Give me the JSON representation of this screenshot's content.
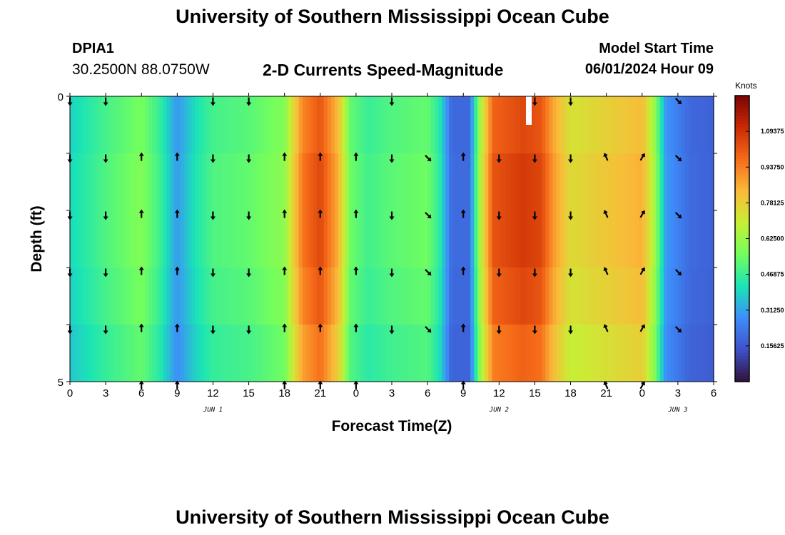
{
  "header": {
    "title": "University of Southern Mississippi Ocean Cube",
    "station_id": "DPIA1",
    "coords": "30.2500N  88.0750W",
    "subtitle": "2-D Currents Speed-Magnitude",
    "start_label": "Model Start Time",
    "start_value": "06/01/2024 Hour 09"
  },
  "footer": {
    "title": "University of Southern Mississippi Ocean Cube"
  },
  "chart_data": {
    "type": "heatmap",
    "title": "2-D Currents Speed-Magnitude",
    "xlabel": "Forecast Time(Z)",
    "ylabel": "Depth (ft)",
    "x_range_hours": [
      0,
      54
    ],
    "ylim": [
      0,
      5
    ],
    "x_ticks": [
      "0",
      "3",
      "6",
      "9",
      "12",
      "15",
      "18",
      "21",
      "0",
      "3",
      "6",
      "9",
      "12",
      "15",
      "18",
      "21",
      "0",
      "3",
      "6"
    ],
    "y_tick_labels": [
      "0",
      "5"
    ],
    "date_labels": [
      {
        "label": "JUN 1",
        "hour": 12
      },
      {
        "label": "JUN 2",
        "hour": 36
      },
      {
        "label": "JUN 3",
        "hour": 51
      }
    ],
    "depth_layers": 5,
    "speed_profile_knots": [
      {
        "hour": 0,
        "speed": 0.4
      },
      {
        "hour": 3,
        "speed": 0.5
      },
      {
        "hour": 6,
        "speed": 0.58
      },
      {
        "hour": 7.5,
        "speed": 0.48
      },
      {
        "hour": 9,
        "speed": 0.3
      },
      {
        "hour": 10.5,
        "speed": 0.42
      },
      {
        "hour": 12,
        "speed": 0.5
      },
      {
        "hour": 15,
        "speed": 0.53
      },
      {
        "hour": 18,
        "speed": 0.6
      },
      {
        "hour": 19.5,
        "speed": 0.95
      },
      {
        "hour": 21,
        "speed": 1.05
      },
      {
        "hour": 22.5,
        "speed": 0.85
      },
      {
        "hour": 23.5,
        "speed": 0.55
      },
      {
        "hour": 25,
        "speed": 0.48
      },
      {
        "hour": 27,
        "speed": 0.52
      },
      {
        "hour": 30,
        "speed": 0.55
      },
      {
        "hour": 31,
        "speed": 0.45
      },
      {
        "hour": 32,
        "speed": 0.2
      },
      {
        "hour": 33.5,
        "speed": 0.2
      },
      {
        "hour": 34.5,
        "speed": 0.7
      },
      {
        "hour": 35.5,
        "speed": 1.02
      },
      {
        "hour": 38,
        "speed": 1.08
      },
      {
        "hour": 39.5,
        "speed": 1.05
      },
      {
        "hour": 40.5,
        "speed": 0.9
      },
      {
        "hour": 42,
        "speed": 0.75
      },
      {
        "hour": 45,
        "speed": 0.8
      },
      {
        "hour": 48,
        "speed": 0.85
      },
      {
        "hour": 49,
        "speed": 0.65
      },
      {
        "hour": 50,
        "speed": 0.3
      },
      {
        "hour": 52,
        "speed": 0.2
      },
      {
        "hour": 54,
        "speed": 0.18
      }
    ],
    "arrows": [
      {
        "hour": 0,
        "dir": "down",
        "layers": [
          0,
          1,
          2,
          3,
          4
        ]
      },
      {
        "hour": 3,
        "dir": "down",
        "layers": [
          0,
          1,
          2,
          3,
          4
        ]
      },
      {
        "hour": 6,
        "dir": "up",
        "layers": [
          1,
          2,
          3,
          4,
          5
        ]
      },
      {
        "hour": 9,
        "dir": "up",
        "layers": [
          1,
          2,
          3,
          4,
          5
        ]
      },
      {
        "hour": 12,
        "dir": "down",
        "layers": [
          0,
          1,
          2,
          3,
          4
        ]
      },
      {
        "hour": 15,
        "dir": "down",
        "layers": [
          0,
          1,
          2,
          3,
          4
        ]
      },
      {
        "hour": 18,
        "dir": "up",
        "layers": [
          1,
          2,
          3,
          4,
          5
        ]
      },
      {
        "hour": 21,
        "dir": "up",
        "layers": [
          1,
          2,
          3,
          4,
          5
        ]
      },
      {
        "hour": 24,
        "dir": "up",
        "layers": [
          1,
          2,
          3,
          4,
          5
        ]
      },
      {
        "hour": 27,
        "dir": "down",
        "layers": [
          0,
          1,
          2,
          3,
          4
        ]
      },
      {
        "hour": 30,
        "dir": "down-right",
        "layers": [
          1,
          2,
          3,
          4
        ]
      },
      {
        "hour": 33,
        "dir": "up",
        "layers": [
          1,
          2,
          3,
          4,
          5
        ]
      },
      {
        "hour": 36,
        "dir": "down",
        "layers": [
          1,
          2,
          3,
          4
        ]
      },
      {
        "hour": 39,
        "dir": "down",
        "layers": [
          0,
          1,
          2,
          3,
          4
        ]
      },
      {
        "hour": 42,
        "dir": "down",
        "layers": [
          0,
          1,
          2,
          3,
          4
        ]
      },
      {
        "hour": 45,
        "dir": "up-left",
        "layers": [
          1,
          2,
          3,
          4,
          5
        ]
      },
      {
        "hour": 48,
        "dir": "up-right",
        "layers": [
          1,
          2,
          3,
          4,
          5
        ]
      },
      {
        "hour": 51,
        "dir": "down-right",
        "layers": [
          0,
          1,
          2,
          3,
          4
        ]
      }
    ],
    "colorbar": {
      "label": "Knots",
      "min": 0,
      "max": 1.25,
      "ticks": [
        "0.15625",
        "0.31250",
        "0.46875",
        "0.62500",
        "0.78125",
        "0.93750",
        "1.09375"
      ],
      "colors": [
        "#30123b",
        "#3e51c8",
        "#3e8dfb",
        "#1ae4b6",
        "#72fe5e",
        "#c7ef34",
        "#faba39",
        "#f66b19",
        "#ca2a04",
        "#7a0403"
      ]
    }
  }
}
